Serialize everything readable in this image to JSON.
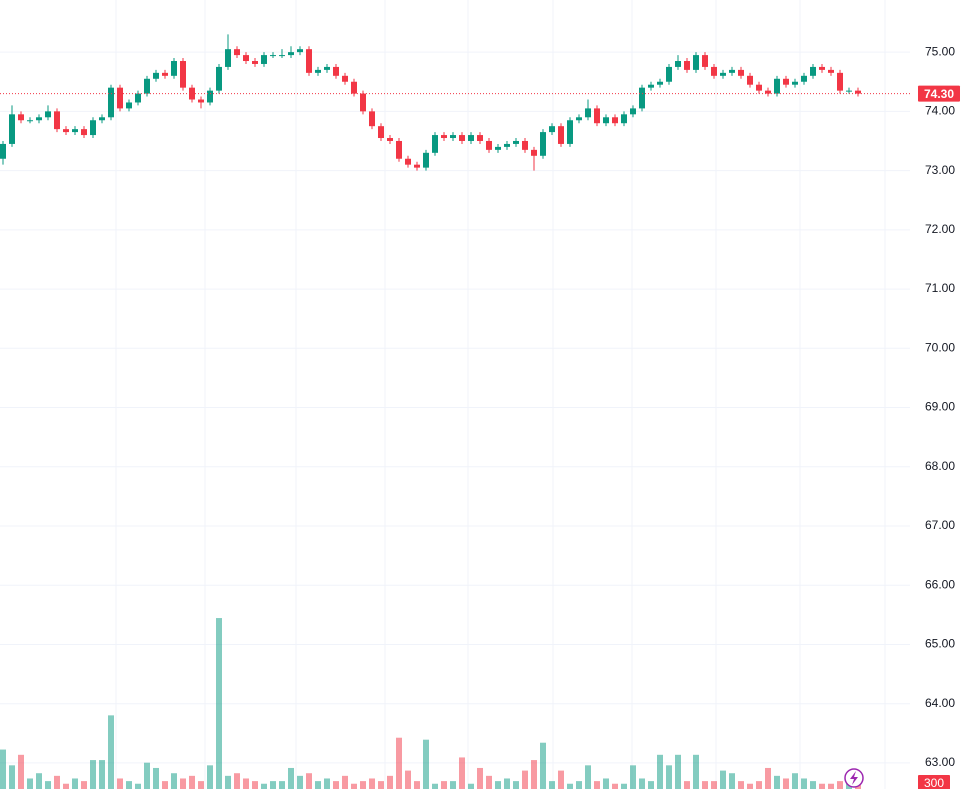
{
  "chart_data": {
    "type": "candlestick",
    "up_color": "#089981",
    "down_color": "#f23645",
    "ylim": [
      62.56,
      75.88
    ],
    "yticks": [
      {
        "value": 63,
        "label": "63.00"
      },
      {
        "value": 64,
        "label": "64.00"
      },
      {
        "value": 65,
        "label": "65.00"
      },
      {
        "value": 66,
        "label": "66.00"
      },
      {
        "value": 67,
        "label": "67.00"
      },
      {
        "value": 68,
        "label": "68.00"
      },
      {
        "value": 69,
        "label": "69.00"
      },
      {
        "value": 70,
        "label": "70.00"
      },
      {
        "value": 71,
        "label": "71.00"
      },
      {
        "value": 72,
        "label": "72.00"
      },
      {
        "value": 73,
        "label": "73.00"
      },
      {
        "value": 74,
        "label": "74.00"
      },
      {
        "value": 75,
        "label": "75.00"
      }
    ],
    "grid": true,
    "volume_ylim": [
      0,
      30000
    ],
    "last_price": {
      "value": 74.3,
      "label": "74.30"
    },
    "open": [
      73.2,
      73.45,
      73.95,
      73.85,
      73.85,
      73.9,
      74.0,
      73.7,
      73.65,
      73.7,
      73.6,
      73.85,
      73.9,
      74.4,
      74.05,
      74.15,
      74.3,
      74.55,
      74.65,
      74.6,
      74.85,
      74.4,
      74.2,
      74.15,
      74.35,
      74.75,
      75.05,
      74.95,
      74.85,
      74.8,
      74.95,
      74.95,
      74.95,
      75.0,
      75.05,
      74.65,
      74.7,
      74.75,
      74.6,
      74.5,
      74.3,
      74.0,
      73.75,
      73.55,
      73.5,
      73.2,
      73.1,
      73.05,
      73.3,
      73.6,
      73.55,
      73.6,
      73.5,
      73.6,
      73.5,
      73.35,
      73.4,
      73.45,
      73.5,
      73.35,
      73.25,
      73.65,
      73.75,
      73.45,
      73.85,
      73.9,
      74.05,
      73.8,
      73.9,
      73.8,
      73.95,
      74.05,
      74.4,
      74.45,
      74.5,
      74.75,
      74.85,
      74.7,
      74.95,
      74.75,
      74.6,
      74.65,
      74.7,
      74.6,
      74.45,
      74.35,
      74.3,
      74.55,
      74.45,
      74.5,
      74.6,
      74.75,
      74.7,
      74.65,
      74.35,
      74.35
    ],
    "high": [
      73.5,
      74.1,
      74.0,
      73.9,
      73.95,
      74.1,
      74.05,
      73.75,
      73.75,
      73.75,
      73.9,
      73.95,
      74.45,
      74.45,
      74.2,
      74.35,
      74.6,
      74.7,
      74.7,
      74.9,
      74.9,
      74.45,
      74.25,
      74.4,
      74.8,
      75.3,
      75.1,
      75.0,
      74.9,
      75.0,
      75.0,
      75.05,
      75.1,
      75.1,
      75.1,
      74.75,
      74.8,
      74.8,
      74.65,
      74.55,
      74.35,
      74.05,
      73.8,
      73.6,
      73.55,
      73.25,
      73.15,
      73.35,
      73.65,
      73.65,
      73.65,
      73.65,
      73.65,
      73.65,
      73.55,
      73.45,
      73.5,
      73.55,
      73.55,
      73.4,
      73.7,
      73.8,
      73.8,
      73.9,
      73.95,
      74.2,
      74.1,
      73.95,
      73.95,
      74.0,
      74.1,
      74.45,
      74.5,
      74.55,
      74.8,
      74.95,
      74.9,
      75.0,
      75.0,
      74.8,
      74.7,
      74.75,
      74.75,
      74.65,
      74.5,
      74.4,
      74.6,
      74.6,
      74.55,
      74.65,
      74.8,
      74.8,
      74.75,
      74.7,
      74.4,
      74.4
    ],
    "low": [
      73.1,
      73.4,
      73.8,
      73.8,
      73.8,
      73.85,
      73.65,
      73.6,
      73.6,
      73.55,
      73.55,
      73.8,
      73.85,
      74.0,
      74.0,
      74.1,
      74.25,
      74.5,
      74.55,
      74.55,
      74.35,
      74.15,
      74.05,
      74.1,
      74.3,
      74.7,
      74.9,
      74.8,
      74.75,
      74.75,
      74.9,
      74.9,
      74.9,
      74.95,
      74.6,
      74.6,
      74.65,
      74.55,
      74.45,
      74.25,
      73.95,
      73.7,
      73.5,
      73.45,
      73.15,
      73.05,
      73.0,
      73.0,
      73.25,
      73.5,
      73.5,
      73.45,
      73.45,
      73.45,
      73.3,
      73.3,
      73.35,
      73.4,
      73.3,
      73.0,
      73.2,
      73.6,
      73.4,
      73.4,
      73.8,
      73.85,
      73.75,
      73.75,
      73.75,
      73.75,
      73.9,
      74.0,
      74.35,
      74.4,
      74.45,
      74.7,
      74.65,
      74.65,
      74.7,
      74.55,
      74.55,
      74.6,
      74.55,
      74.4,
      74.3,
      74.25,
      74.25,
      74.4,
      74.4,
      74.45,
      74.55,
      74.65,
      74.6,
      74.3,
      74.3,
      74.25
    ],
    "close": [
      73.45,
      73.95,
      73.85,
      73.85,
      73.9,
      74.0,
      73.7,
      73.65,
      73.7,
      73.6,
      73.85,
      73.9,
      74.4,
      74.05,
      74.15,
      74.3,
      74.55,
      74.65,
      74.6,
      74.85,
      74.4,
      74.2,
      74.15,
      74.35,
      74.75,
      75.05,
      74.95,
      74.85,
      74.8,
      74.95,
      74.95,
      74.95,
      75.0,
      75.05,
      74.65,
      74.7,
      74.75,
      74.6,
      74.5,
      74.3,
      74.0,
      73.75,
      73.55,
      73.5,
      73.2,
      73.1,
      73.05,
      73.3,
      73.6,
      73.55,
      73.6,
      73.5,
      73.6,
      73.5,
      73.35,
      73.4,
      73.45,
      73.5,
      73.35,
      73.25,
      73.65,
      73.75,
      73.45,
      73.85,
      73.9,
      74.05,
      73.8,
      73.9,
      73.8,
      73.95,
      74.05,
      74.4,
      74.45,
      74.5,
      74.75,
      74.85,
      74.7,
      74.95,
      74.75,
      74.6,
      74.65,
      74.7,
      74.6,
      74.45,
      74.35,
      74.3,
      74.55,
      74.45,
      74.5,
      74.6,
      74.75,
      74.7,
      74.65,
      74.35,
      74.35,
      74.3
    ],
    "volume": [
      1500,
      900,
      1300,
      400,
      600,
      300,
      500,
      200,
      400,
      300,
      1100,
      1100,
      2800,
      400,
      300,
      200,
      1000,
      800,
      300,
      600,
      400,
      500,
      300,
      900,
      6500,
      500,
      600,
      400,
      300,
      200,
      300,
      300,
      800,
      500,
      600,
      300,
      400,
      300,
      500,
      200,
      300,
      400,
      300,
      500,
      1950,
      700,
      300,
      1875,
      200,
      300,
      300,
      1200,
      200,
      800,
      500,
      300,
      400,
      300,
      700,
      1100,
      1760,
      300,
      700,
      200,
      300,
      900,
      300,
      400,
      200,
      200,
      900,
      400,
      300,
      1300,
      900,
      1300,
      300,
      1300,
      300,
      300,
      700,
      600,
      300,
      200,
      300,
      800,
      500,
      400,
      600,
      400,
      300,
      200,
      200,
      300,
      500,
      300
    ]
  }
}
